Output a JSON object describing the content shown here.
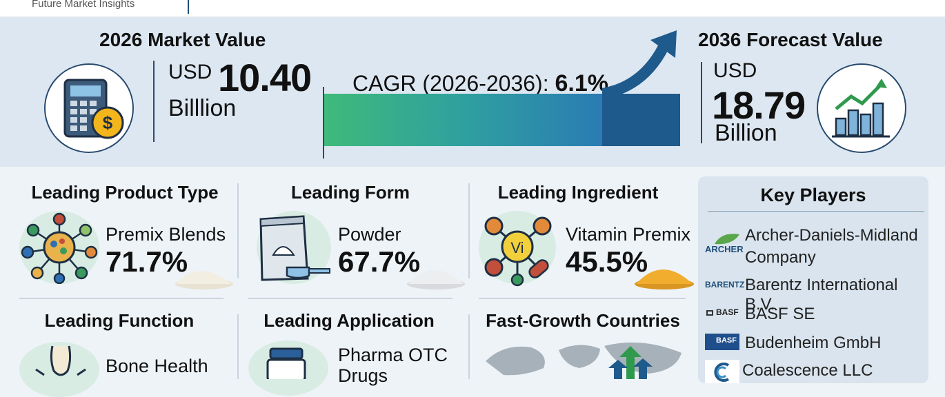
{
  "header": {
    "brand": "Future Market Insights"
  },
  "market_2026": {
    "title": "2026 Market Value",
    "currency": "USD",
    "value": "10.40",
    "unit": "Billlion"
  },
  "cagr": {
    "label": "CAGR (2026-2036): ",
    "value": "6.1%"
  },
  "forecast_2036": {
    "title": "2036 Forecast Value",
    "currency": "USD",
    "value": "18.79",
    "unit": "Billion"
  },
  "segments": {
    "product_type": {
      "title": "Leading Product Type",
      "label": "Premix Blends",
      "pct": "71.7%"
    },
    "form": {
      "title": "Leading Form",
      "label": "Powder",
      "pct": "67.7%"
    },
    "ingredient": {
      "title": "Leading Ingredient",
      "label": "Vitamin Premix",
      "pct": "45.5%",
      "icon_text": "Vi"
    },
    "function": {
      "title": "Leading Function",
      "label": "Bone Health"
    },
    "application": {
      "title": "Leading Application",
      "label_line1": "Pharma OTC",
      "label_line2": "Drugs"
    },
    "countries": {
      "title": "Fast-Growth Countries"
    }
  },
  "key_players": {
    "title": "Key Players",
    "items": [
      {
        "logo": "ARCHER",
        "name_line1": "Archer-Daniels-Midland",
        "name_line2": "Company"
      },
      {
        "logo": "BARENTZ",
        "name_line1": "Barentz International B.V."
      },
      {
        "logo": "BASF",
        "name_line1": "BASF SE"
      },
      {
        "logo": "BASF",
        "name_line1": "Budenheim GmbH"
      },
      {
        "logo": "",
        "name_line1": "Coalescence LLC"
      }
    ]
  },
  "colors": {
    "navy": "#1f4e79",
    "green": "#3fba7a",
    "teal": "#2f9fa0",
    "hero_bg": "#dde7f1",
    "panel_bg": "#d9e4ee"
  }
}
